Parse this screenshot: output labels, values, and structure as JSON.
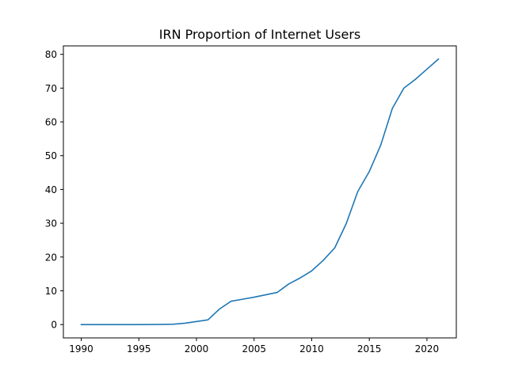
{
  "chart_data": {
    "type": "line",
    "title": "IRN Proportion of Internet Users",
    "xlabel": "",
    "ylabel": "",
    "xlim": [
      1988.45,
      2022.55
    ],
    "ylim": [
      -3.95,
      82.5
    ],
    "xticks": [
      1990,
      1995,
      2000,
      2005,
      2010,
      2015,
      2020
    ],
    "yticks": [
      0,
      10,
      20,
      30,
      40,
      50,
      60,
      70,
      80
    ],
    "grid": false,
    "series": [
      {
        "name": "",
        "color": "#1f77b4",
        "x": [
          1990,
          1991,
          1992,
          1993,
          1994,
          1995,
          1996,
          1997,
          1998,
          1999,
          2000,
          2001,
          2002,
          2003,
          2004,
          2005,
          2006,
          2007,
          2008,
          2009,
          2010,
          2011,
          2012,
          2013,
          2014,
          2015,
          2016,
          2017,
          2018,
          2019,
          2020,
          2021
        ],
        "y": [
          0,
          0,
          0,
          0,
          0,
          0,
          0.01,
          0.04,
          0.1,
          0.4,
          0.9,
          1.4,
          4.6,
          6.9,
          7.5,
          8.1,
          8.8,
          9.5,
          12.0,
          13.8,
          15.9,
          19.0,
          22.7,
          29.9,
          39.4,
          45.3,
          53.2,
          64.0,
          70.0,
          72.6,
          75.6,
          78.6
        ]
      }
    ]
  }
}
